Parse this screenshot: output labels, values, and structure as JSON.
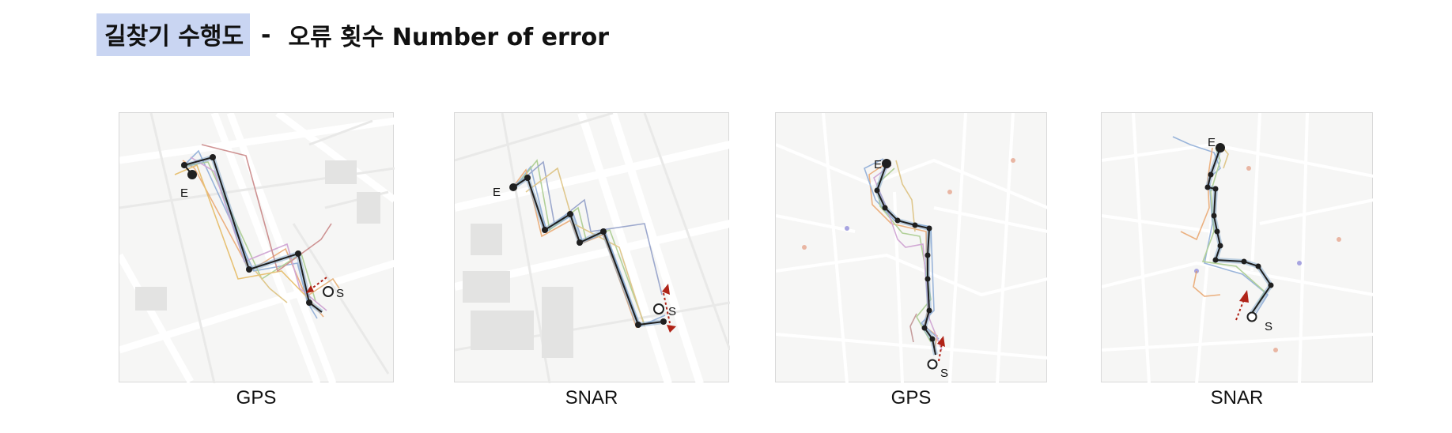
{
  "title": {
    "highlight": "길찾기 수행도",
    "separator": "-",
    "text": "오류 횟수 Number of error"
  },
  "panels": [
    {
      "caption": "GPS",
      "start_label": "S",
      "end_label": "E"
    },
    {
      "caption": "SNAR",
      "start_label": "S",
      "end_label": "E"
    },
    {
      "caption": "GPS",
      "start_label": "S",
      "end_label": "E"
    },
    {
      "caption": "SNAR",
      "start_label": "S",
      "end_label": "E"
    }
  ],
  "colors": {
    "highlight": "#c9d5f2",
    "route": "#1f1f1f",
    "route_glow": "#7fa6c9",
    "heading_arrow": "#b02418",
    "map_background": "#f6f6f5"
  }
}
